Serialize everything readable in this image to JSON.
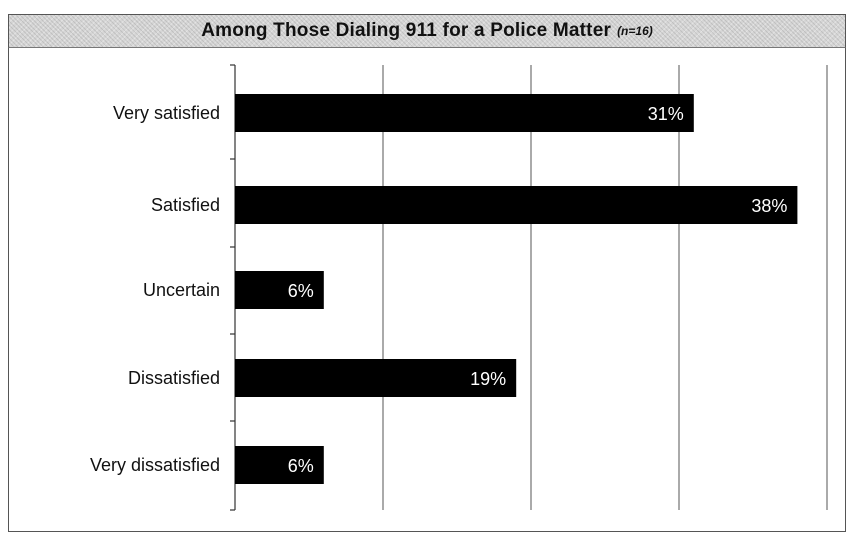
{
  "chart_data": {
    "type": "bar",
    "orientation": "horizontal",
    "title": "Among Those Dialing 911 for a Police Matter",
    "title_note": "(n=16)",
    "categories": [
      "Very satisfied",
      "Satisfied",
      "Uncertain",
      "Dissatisfied",
      "Very dissatisfied"
    ],
    "values": [
      31,
      38,
      6,
      19,
      6
    ],
    "value_labels": [
      "31%",
      "38%",
      "6%",
      "19%",
      "6%"
    ],
    "xlim": [
      0,
      40
    ],
    "grid": true,
    "bar_color": "#000000",
    "label_color": "#ffffff"
  }
}
